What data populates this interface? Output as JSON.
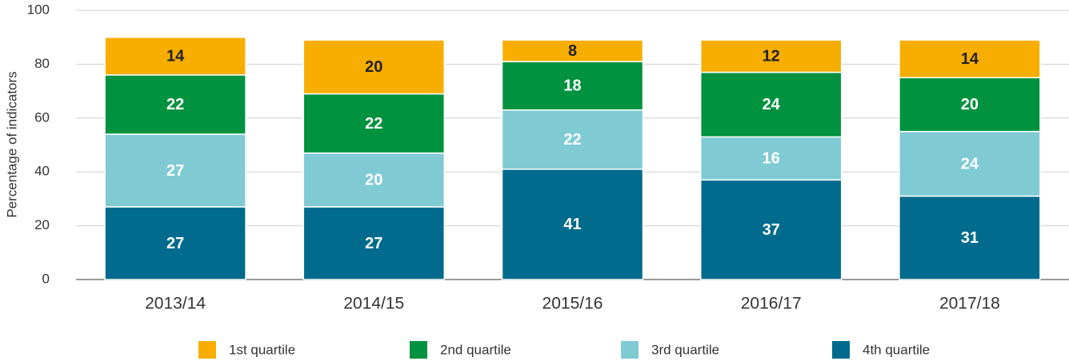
{
  "chart_data": {
    "type": "stacked_bar",
    "y_label": "Percentage of indicators",
    "categories": [
      "2013/14",
      "2014/15",
      "2015/16",
      "2016/17",
      "2017/18"
    ],
    "series": [
      {
        "name": "1st quartile",
        "color": "#f7ae00",
        "values": [
          14,
          20,
          8,
          12,
          14
        ]
      },
      {
        "name": "2nd quartile",
        "color": "#00923f",
        "values": [
          22,
          22,
          18,
          24,
          20
        ]
      },
      {
        "name": "3rd quartile",
        "color": "#80cad4",
        "values": [
          27,
          20,
          22,
          16,
          24
        ]
      },
      {
        "name": "4th quartile",
        "color": "#006b8c",
        "values": [
          27,
          27,
          41,
          37,
          31
        ]
      }
    ],
    "ylim": [
      0,
      100
    ],
    "yticks": [
      0,
      20,
      40,
      60,
      80,
      100
    ],
    "grid": true,
    "legend": "bottom"
  }
}
